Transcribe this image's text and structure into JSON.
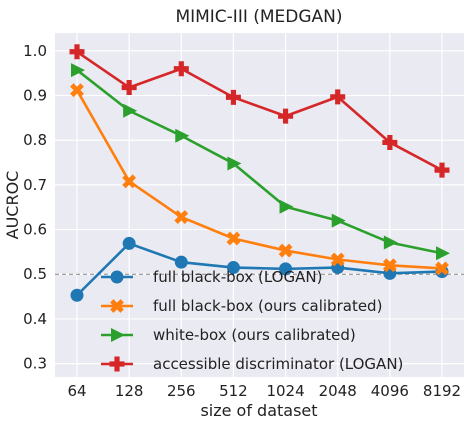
{
  "chart_data": {
    "type": "line",
    "title": "MIMIC-III (MEDGAN)",
    "xlabel": "size of dataset",
    "ylabel": "AUCROC",
    "categories": [
      "64",
      "128",
      "256",
      "512",
      "1024",
      "2048",
      "4096",
      "8192"
    ],
    "ylim": [
      0.27,
      1.04
    ],
    "yticks": [
      "0.3",
      "0.4",
      "0.5",
      "0.6",
      "0.7",
      "0.8",
      "0.9",
      "1.0"
    ],
    "grid": true,
    "reference_line": 0.5,
    "legend_placement": "bottom-center",
    "series": [
      {
        "name": "full black-box (LOGAN)",
        "color": "#1f77b4",
        "marker": "circle",
        "values": [
          0.453,
          0.569,
          0.527,
          0.515,
          0.512,
          0.515,
          0.502,
          0.506
        ]
      },
      {
        "name": "full black-box (ours calibrated)",
        "color": "#ff7f0e",
        "marker": "x",
        "values": [
          0.912,
          0.708,
          0.628,
          0.58,
          0.553,
          0.533,
          0.52,
          0.513
        ]
      },
      {
        "name": "white-box (ours calibrated)",
        "color": "#2ca02c",
        "marker": "triangle-right",
        "values": [
          0.957,
          0.866,
          0.81,
          0.748,
          0.651,
          0.62,
          0.571,
          0.547
        ]
      },
      {
        "name": "accessible discriminator (LOGAN)",
        "color": "#d62728",
        "marker": "plus",
        "values": [
          0.998,
          0.918,
          0.96,
          0.896,
          0.854,
          0.897,
          0.795,
          0.733
        ]
      }
    ]
  }
}
